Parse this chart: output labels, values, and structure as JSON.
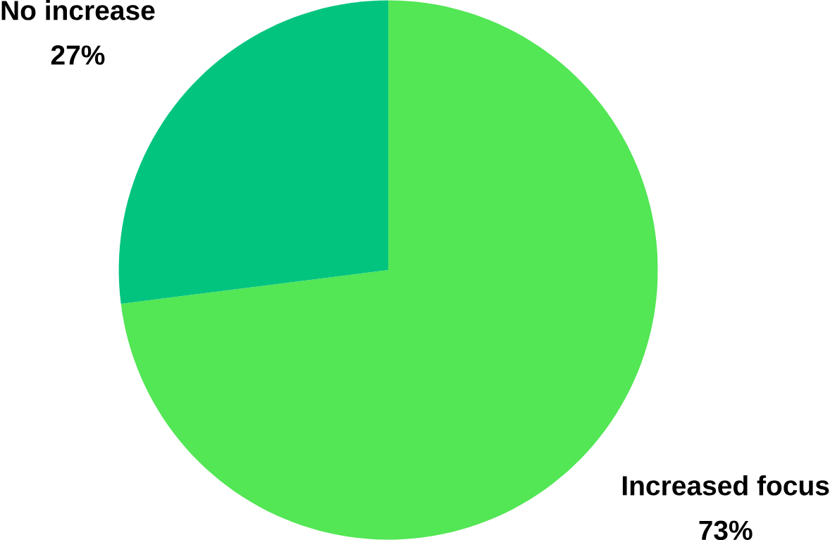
{
  "chart_data": {
    "type": "pie",
    "categories": [
      "Increased focus",
      "No increase"
    ],
    "values": [
      73,
      27
    ],
    "colors": [
      "#53e655",
      "#02c47f"
    ],
    "value_labels": [
      "73%",
      "27%"
    ]
  }
}
